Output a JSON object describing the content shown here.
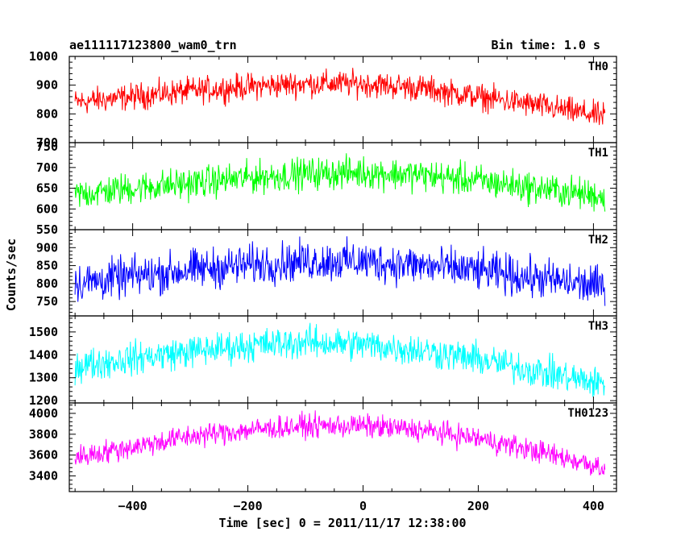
{
  "figure": {
    "title_left": "ae111117123800_wam0_trn",
    "title_right": "Bin time: 1.0 s",
    "xlabel": "Time [sec] 0 = 2011/11/17 12:38:00",
    "ylabel": "Counts/sec"
  },
  "chart_data": [
    {
      "type": "line",
      "name": "TH0",
      "color": "#ff0000",
      "xlim": [
        -510,
        440
      ],
      "ylim": [
        700,
        1000
      ],
      "yticks": [
        700,
        800,
        900,
        1000
      ],
      "x": [
        -500,
        -400,
        -300,
        -200,
        -100,
        0,
        100,
        200,
        300,
        420
      ],
      "y": [
        840,
        860,
        880,
        895,
        905,
        905,
        890,
        860,
        830,
        790
      ],
      "noise_amplitude": 45
    },
    {
      "type": "line",
      "name": "TH1",
      "color": "#00ff00",
      "xlim": [
        -510,
        440
      ],
      "ylim": [
        550,
        760
      ],
      "yticks": [
        550,
        600,
        650,
        700,
        750
      ],
      "x": [
        -500,
        -400,
        -300,
        -200,
        -100,
        0,
        100,
        200,
        300,
        420
      ],
      "y": [
        635,
        650,
        662,
        675,
        685,
        688,
        682,
        668,
        650,
        630
      ],
      "noise_amplitude": 38
    },
    {
      "type": "line",
      "name": "TH2",
      "color": "#0000ff",
      "xlim": [
        -510,
        440
      ],
      "ylim": [
        710,
        950
      ],
      "yticks": [
        750,
        800,
        850,
        900
      ],
      "x": [
        -500,
        -400,
        -300,
        -200,
        -100,
        0,
        100,
        200,
        300,
        420
      ],
      "y": [
        800,
        820,
        838,
        852,
        862,
        862,
        850,
        835,
        815,
        790
      ],
      "noise_amplitude": 55
    },
    {
      "type": "line",
      "name": "TH3",
      "color": "#00ffff",
      "xlim": [
        -510,
        440
      ],
      "ylim": [
        1190,
        1570
      ],
      "yticks": [
        1200,
        1300,
        1400,
        1500
      ],
      "x": [
        -500,
        -400,
        -300,
        -200,
        -100,
        0,
        100,
        200,
        300,
        420
      ],
      "y": [
        1350,
        1385,
        1415,
        1440,
        1455,
        1445,
        1420,
        1380,
        1330,
        1270
      ],
      "noise_amplitude": 70
    },
    {
      "type": "line",
      "name": "TH0123",
      "color": "#ff00ff",
      "xlim": [
        -510,
        440
      ],
      "ylim": [
        3250,
        4100
      ],
      "yticks": [
        3400,
        3600,
        3800,
        4000
      ],
      "x": [
        -500,
        -400,
        -300,
        -200,
        -100,
        0,
        100,
        200,
        300,
        420
      ],
      "y": [
        3580,
        3680,
        3780,
        3840,
        3880,
        3880,
        3840,
        3760,
        3640,
        3480
      ],
      "noise_amplitude": 110
    }
  ],
  "xaxis": {
    "ticks": [
      -400,
      -200,
      0,
      200,
      400
    ],
    "minor_step": 50
  }
}
